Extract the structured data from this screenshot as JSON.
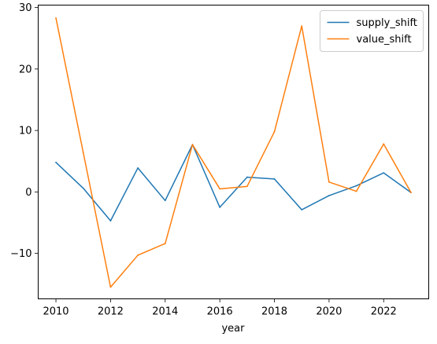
{
  "chart_data": {
    "type": "line",
    "title": "",
    "xlabel": "year",
    "ylabel": "",
    "x": [
      2010,
      2011,
      2012,
      2013,
      2014,
      2015,
      2016,
      2017,
      2018,
      2019,
      2020,
      2021,
      2022,
      2023
    ],
    "series": [
      {
        "name": "supply_shift",
        "color": "#1f77b4",
        "values": [
          4.8,
          0.6,
          -4.7,
          3.9,
          -1.4,
          7.7,
          -2.5,
          2.4,
          2.1,
          -2.9,
          -0.6,
          1.0,
          3.1,
          -0.1
        ]
      },
      {
        "name": "value_shift",
        "color": "#ff7f0e",
        "values": [
          28.3,
          6.4,
          -15.5,
          -10.3,
          -8.4,
          7.7,
          0.5,
          0.9,
          9.8,
          27.0,
          1.6,
          0.1,
          7.8,
          -0.1
        ]
      }
    ],
    "xlim": [
      2009.35,
      2023.65
    ],
    "ylim": [
      -17.4,
      30.4
    ],
    "xticks": [
      "2010",
      "2012",
      "2014",
      "2016",
      "2018",
      "2020",
      "2022"
    ],
    "yticks": [
      "−10",
      "0",
      "10",
      "20",
      "30"
    ],
    "legend_position": "top-right",
    "grid": false
  }
}
